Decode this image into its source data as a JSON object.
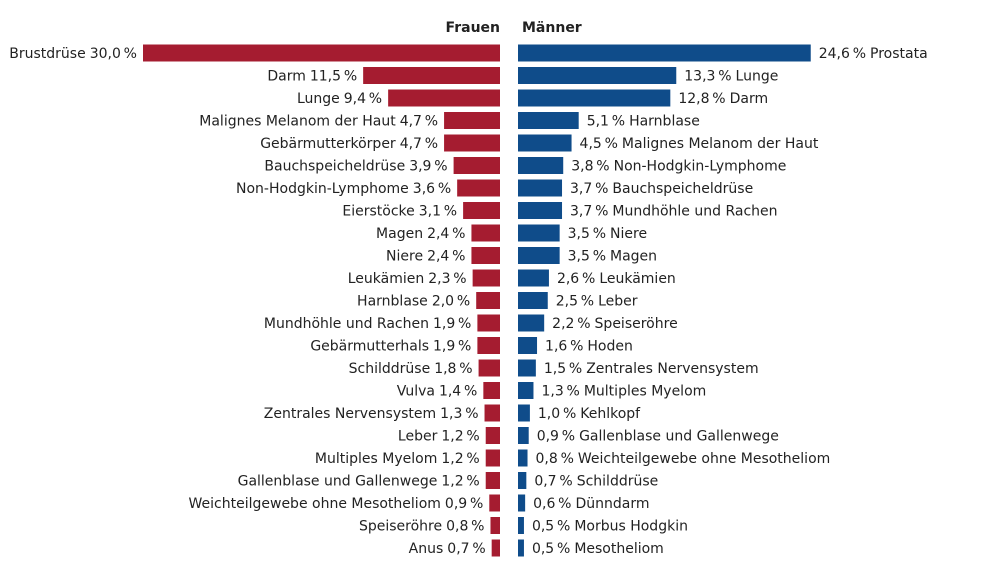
{
  "chart_data": {
    "type": "butterfly",
    "series": [
      {
        "name": "Frauen",
        "color": "#a51c30",
        "categories": [
          "Brustdrüse",
          "Darm",
          "Lunge",
          "Malignes Melanom der Haut",
          "Gebärmutterkörper",
          "Bauchspeicheldrüse",
          "Non-Hodgkin-Lymphome",
          "Eierstöcke",
          "Magen",
          "Niere",
          "Leukämien",
          "Harnblase",
          "Mundhöhle und Rachen",
          "Gebärmutterhals",
          "Schilddrüse",
          "Vulva",
          "Zentrales Nervensystem",
          "Leber",
          "Multiples Myelom",
          "Gallenblase und Gallenwege",
          "Weichteilgewebe ohne Mesotheliom",
          "Speiseröhre",
          "Anus"
        ],
        "values": [
          30.0,
          11.5,
          9.4,
          4.7,
          4.7,
          3.9,
          3.6,
          3.1,
          2.4,
          2.4,
          2.3,
          2.0,
          1.9,
          1.9,
          1.8,
          1.4,
          1.3,
          1.2,
          1.2,
          1.2,
          0.9,
          0.8,
          0.7
        ],
        "value_labels": [
          "30,0 %",
          "11,5 %",
          "9,4 %",
          "4,7 %",
          "4,7 %",
          "3,9 %",
          "3,6 %",
          "3,1 %",
          "2,4 %",
          "2,4 %",
          "2,3 %",
          "2,0 %",
          "1,9 %",
          "1,9 %",
          "1,8 %",
          "1,4 %",
          "1,3 %",
          "1,2 %",
          "1,2 %",
          "1,2 %",
          "0,9 %",
          "0,8 %",
          "0,7 %"
        ]
      },
      {
        "name": "Männer",
        "color": "#0f4c8a",
        "categories": [
          "Prostata",
          "Lunge",
          "Darm",
          "Harnblase",
          "Malignes Melanom der Haut",
          "Non-Hodgkin-Lymphome",
          "Bauchspeicheldrüse",
          "Mundhöhle und Rachen",
          "Niere",
          "Magen",
          "Leukämien",
          "Leber",
          "Speiseröhre",
          "Hoden",
          "Zentrales Nervensystem",
          "Multiples Myelom",
          "Kehlkopf",
          "Gallenblase und Gallenwege",
          "Weichteilgewebe ohne Mesotheliom",
          "Schilddrüse",
          "Dünndarm",
          "Morbus Hodgkin",
          "Mesotheliom"
        ],
        "values": [
          24.6,
          13.3,
          12.8,
          5.1,
          4.5,
          3.8,
          3.7,
          3.7,
          3.5,
          3.5,
          2.6,
          2.5,
          2.2,
          1.6,
          1.5,
          1.3,
          1.0,
          0.9,
          0.8,
          0.7,
          0.6,
          0.5,
          0.5
        ],
        "value_labels": [
          "24,6 %",
          "13,3 %",
          "12,8 %",
          "5,1 %",
          "4,5 %",
          "3,8 %",
          "3,7 %",
          "3,7 %",
          "3,5 %",
          "3,5 %",
          "2,6 %",
          "2,5 %",
          "2,2 %",
          "1,6 %",
          "1,5 %",
          "1,3 %",
          "1,0 %",
          "0,9 %",
          "0,8 %",
          "0,7 %",
          "0,6 %",
          "0,5 %",
          "0,5 %"
        ]
      }
    ]
  }
}
